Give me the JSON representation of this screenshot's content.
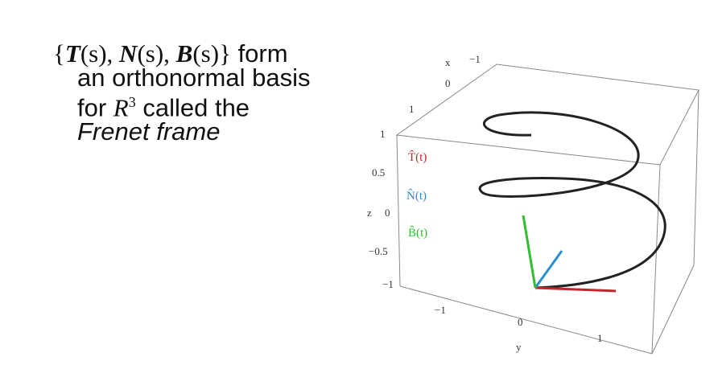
{
  "slide": {
    "statement": {
      "line1": [
        "{",
        "T",
        "(s)",
        ", ",
        "N",
        "(s)",
        ", ",
        "B",
        "(s)",
        "}",
        " form"
      ],
      "line2": "an orthonormal basis",
      "line3": [
        "for ",
        "R",
        "3",
        " called the"
      ],
      "line4": "Frenet frame"
    },
    "plot": {
      "axis_labels": {
        "x": "x",
        "y": "y",
        "z": "z"
      },
      "x_ticks": [
        "−1",
        "0",
        "1"
      ],
      "y_ticks": [
        "−1",
        "0",
        "1"
      ],
      "z_ticks": [
        "1",
        "0.5",
        "0",
        "−0.5",
        "−1"
      ],
      "legend": [
        "T̂(t)",
        "N̂(t)",
        "B̂(t)"
      ]
    }
  }
}
